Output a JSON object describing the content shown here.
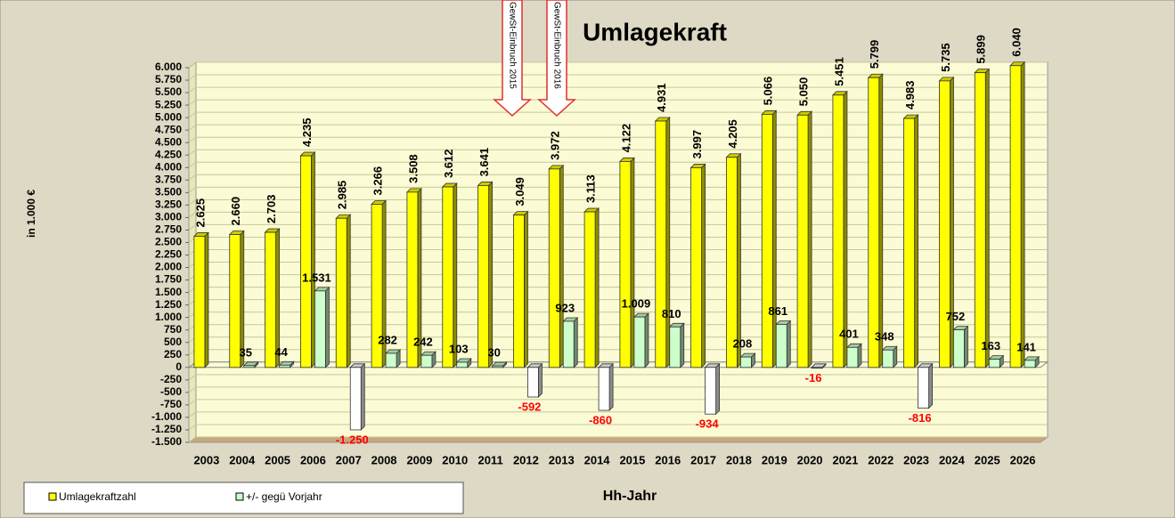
{
  "chart_data": {
    "type": "bar",
    "title": "Umlagekraft",
    "y_label": "in 1.000 €",
    "x_label": "Hh-Jahr",
    "annotations": [
      "GewSt-Einbruch 2015",
      "GewSt-Einbruch 2016"
    ],
    "categories": [
      "2003",
      "2004",
      "2005",
      "2006",
      "2007",
      "2008",
      "2009",
      "2010",
      "2011",
      "2012",
      "2013",
      "2014",
      "2015",
      "2016",
      "2017",
      "2018",
      "2019",
      "2020",
      "2021",
      "2022",
      "2023",
      "2024",
      "2025",
      "2026"
    ],
    "series": [
      {
        "name": "Umlagekraftzahl",
        "color": "#ffff00",
        "values": [
          2625,
          2660,
          2703,
          4235,
          2985,
          3266,
          3508,
          3612,
          3641,
          3049,
          3972,
          3113,
          4122,
          4931,
          3997,
          4205,
          5066,
          5050,
          5451,
          5799,
          4983,
          5735,
          5899,
          6040
        ],
        "value_labels": [
          "2.625",
          "2.660",
          "2.703",
          "4.235",
          "2.985",
          "3.266",
          "3.508",
          "3.612",
          "3.641",
          "3.049",
          "3.972",
          "3.113",
          "4.122",
          "4.931",
          "3.997",
          "4.205",
          "5.066",
          "5.050",
          "5.451",
          "5.799",
          "4.983",
          "5.735",
          "5.899",
          "6.040"
        ]
      },
      {
        "name": "+/- gegü Vorjahr",
        "color": "#ccffcc",
        "values": [
          null,
          35,
          44,
          1531,
          -1250,
          282,
          242,
          103,
          30,
          -592,
          923,
          -860,
          1009,
          810,
          -934,
          208,
          861,
          -16,
          401,
          348,
          -816,
          752,
          163,
          141
        ],
        "value_labels": [
          null,
          "35",
          "44",
          "1.531",
          "-1.250",
          "282",
          "242",
          "103",
          "30",
          "-592",
          "923",
          "-860",
          "1.009",
          "810",
          "-934",
          "208",
          "861",
          "-16",
          "401",
          "348",
          "-816",
          "752",
          "163",
          "141"
        ]
      }
    ],
    "negative_color": "#ffffff",
    "ylim": [
      -1500,
      6000
    ],
    "yticks": [
      {
        "value": -1500,
        "label": "-1.500"
      },
      {
        "value": -1250,
        "label": "-1.250"
      },
      {
        "value": -1000,
        "label": "-1.000"
      },
      -750,
      -500,
      -250,
      0,
      250,
      500,
      750,
      {
        "value": 1000,
        "label": "1.000"
      },
      {
        "value": 1250,
        "label": "1.250"
      },
      {
        "value": 1500,
        "label": "1.500"
      },
      {
        "value": 1750,
        "label": "1.750"
      },
      {
        "value": 2000,
        "label": "2.000"
      },
      {
        "value": 2250,
        "label": "2.250"
      },
      {
        "value": 2500,
        "label": "2.500"
      },
      {
        "value": 2750,
        "label": "2.750"
      },
      {
        "value": 3000,
        "label": "3.000"
      },
      {
        "value": 3250,
        "label": "3.250"
      },
      {
        "value": 3500,
        "label": "3.500"
      },
      {
        "value": 3750,
        "label": "3.750"
      },
      {
        "value": 4000,
        "label": "4.000"
      },
      {
        "value": 4250,
        "label": "4.250"
      },
      {
        "value": 4500,
        "label": "4.500"
      },
      {
        "value": 4750,
        "label": "4.750"
      },
      {
        "value": 5000,
        "label": "5.000"
      },
      {
        "value": 5250,
        "label": "5.250"
      },
      {
        "value": 5500,
        "label": "5.500"
      },
      {
        "value": 5750,
        "label": "5.750"
      },
      {
        "value": 6000,
        "label": "6.000"
      }
    ],
    "grid": true
  }
}
